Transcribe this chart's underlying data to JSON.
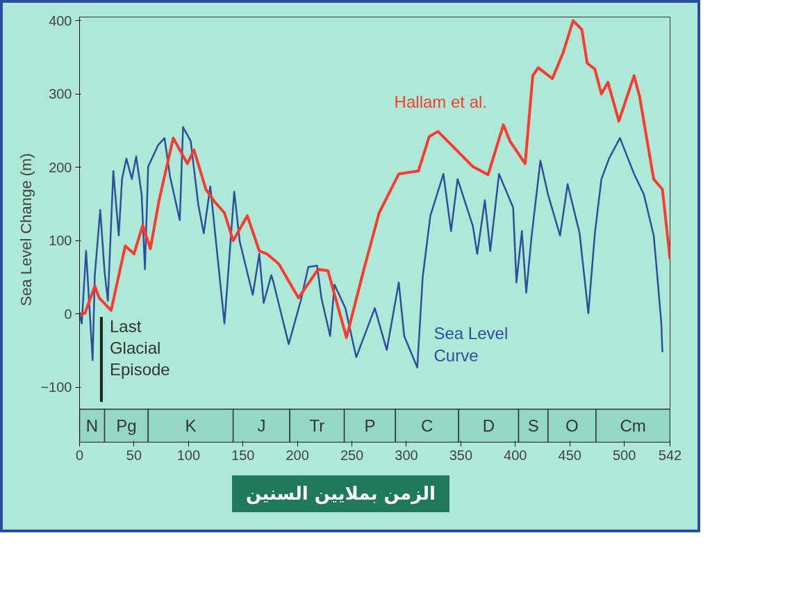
{
  "chart_data": {
    "type": "line",
    "xlabel": "الزمن بملايين السنين",
    "ylabel": "Sea Level Change (m)",
    "xlim": [
      0,
      542
    ],
    "xticks": [
      0,
      50,
      100,
      150,
      200,
      250,
      300,
      350,
      400,
      450,
      500,
      542
    ],
    "ylim": [
      -175,
      405
    ],
    "yticks": [
      -100,
      0,
      100,
      200,
      300,
      400
    ],
    "grid": false,
    "series": [
      {
        "name": "Sea Level Curve",
        "color": "#2f4f9e",
        "x": [
          0,
          2,
          6,
          10,
          12,
          14,
          19,
          23,
          26,
          31,
          36,
          39,
          43,
          48,
          52,
          57,
          60,
          63,
          72,
          78,
          83,
          92,
          95,
          102,
          109,
          114,
          120,
          133,
          142,
          147,
          159,
          165,
          169,
          176,
          178,
          192,
          203,
          210,
          218,
          222,
          230,
          234,
          244,
          254,
          271,
          282,
          293,
          298,
          310,
          315,
          322,
          334,
          341,
          347,
          361,
          365,
          372,
          377,
          385,
          398,
          401,
          406,
          410,
          415,
          423,
          430,
          441,
          448,
          459,
          467,
          473,
          479,
          486,
          496,
          509,
          518,
          527,
          530,
          534,
          535
        ],
        "values": [
          0,
          -13,
          86,
          -13,
          -63,
          53,
          142,
          57,
          18,
          195,
          107,
          184,
          212,
          184,
          215,
          163,
          61,
          201,
          230,
          240,
          188,
          128,
          255,
          236,
          149,
          110,
          174,
          -13,
          167,
          99,
          26,
          82,
          15,
          53,
          43,
          -41,
          18,
          64,
          66,
          22,
          -30,
          40,
          8,
          -59,
          8,
          -49,
          43,
          -30,
          -73,
          51,
          134,
          191,
          113,
          184,
          120,
          82,
          155,
          86,
          191,
          145,
          43,
          113,
          29,
          107,
          209,
          163,
          107,
          177,
          110,
          1,
          110,
          184,
          212,
          240,
          191,
          163,
          107,
          57,
          -13,
          -52
        ]
      },
      {
        "name": "Hallam et al.",
        "color": "#ff3b30",
        "x": [
          0,
          5,
          14,
          18,
          29,
          42,
          50,
          58,
          65,
          73,
          86,
          99,
          105,
          116,
          124,
          133,
          141,
          154,
          165,
          172,
          183,
          201,
          219,
          228,
          245,
          261,
          275,
          293,
          311,
          321,
          329,
          361,
          375,
          389,
          395,
          409,
          416,
          421,
          434,
          444,
          453,
          461,
          466,
          473,
          479,
          485,
          495,
          509,
          514,
          527,
          535,
          542
        ],
        "values": [
          0,
          1,
          38,
          22,
          5,
          93,
          82,
          121,
          89,
          155,
          240,
          205,
          224,
          170,
          153,
          138,
          100,
          134,
          86,
          82,
          68,
          22,
          61,
          59,
          -32,
          61,
          138,
          191,
          195,
          242,
          249,
          201,
          190,
          258,
          236,
          205,
          325,
          336,
          321,
          357,
          400,
          388,
          342,
          334,
          300,
          316,
          263,
          325,
          297,
          184,
          170,
          75
        ]
      }
    ],
    "bands": [
      {
        "axis": "x",
        "from": 0,
        "to": 23,
        "label": "N",
        "color": "#92d8c2"
      },
      {
        "axis": "x",
        "from": 23,
        "to": 63,
        "label": "Pg",
        "color": "#92d8c2"
      },
      {
        "axis": "x",
        "from": 63,
        "to": 141,
        "label": "K",
        "color": "#92d8c2"
      },
      {
        "axis": "x",
        "from": 141,
        "to": 193,
        "label": "J",
        "color": "#92d8c2"
      },
      {
        "axis": "x",
        "from": 193,
        "to": 243,
        "label": "Tr",
        "color": "#92d8c2"
      },
      {
        "axis": "x",
        "from": 243,
        "to": 290,
        "label": "P",
        "color": "#92d8c2"
      },
      {
        "axis": "x",
        "from": 290,
        "to": 348,
        "label": "C",
        "color": "#92d8c2"
      },
      {
        "axis": "x",
        "from": 348,
        "to": 403,
        "label": "D",
        "color": "#92d8c2"
      },
      {
        "axis": "x",
        "from": 403,
        "to": 430,
        "label": "S",
        "color": "#92d8c2"
      },
      {
        "axis": "x",
        "from": 430,
        "to": 474,
        "label": "O",
        "color": "#92d8c2"
      },
      {
        "axis": "x",
        "from": 474,
        "to": 542,
        "label": "Cm",
        "color": "#92d8c2"
      }
    ],
    "annotations": [
      "Last\nGlacial\nEpisode"
    ]
  }
}
